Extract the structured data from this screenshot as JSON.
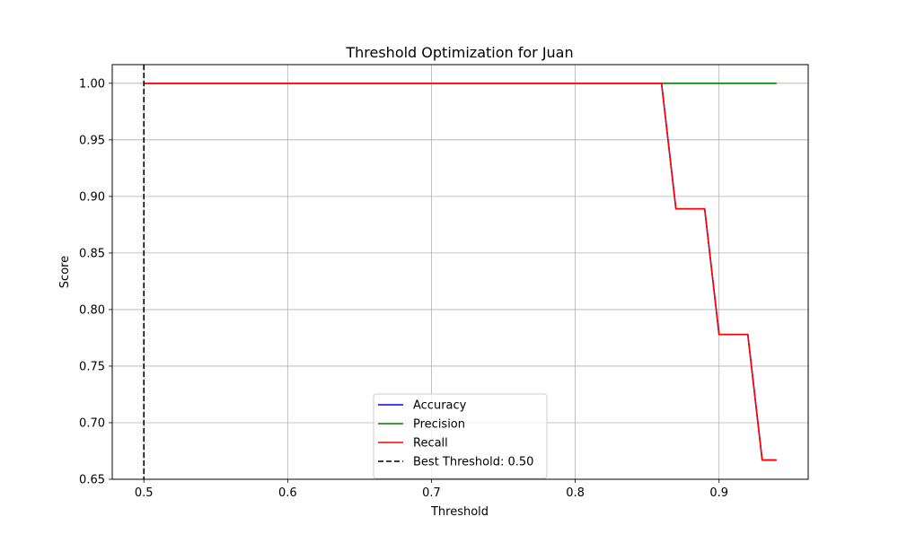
{
  "chart_data": {
    "type": "line",
    "title": "Threshold Optimization for Juan",
    "xlabel": "Threshold",
    "ylabel": "Score",
    "xlim": [
      0.478,
      0.962
    ],
    "ylim": [
      0.65,
      1.0165
    ],
    "xticks": [
      0.5,
      0.6,
      0.7,
      0.8,
      0.9
    ],
    "xtick_labels": [
      "0.5",
      "0.6",
      "0.7",
      "0.8",
      "0.9"
    ],
    "yticks": [
      0.65,
      0.7,
      0.75,
      0.8,
      0.85,
      0.9,
      0.95,
      1.0
    ],
    "ytick_labels": [
      "0.65",
      "0.70",
      "0.75",
      "0.80",
      "0.85",
      "0.90",
      "0.95",
      "1.00"
    ],
    "grid": true,
    "legend_position": "lower-center",
    "x": [
      0.5,
      0.51,
      0.52,
      0.53,
      0.54,
      0.55,
      0.56,
      0.57,
      0.58,
      0.59,
      0.6,
      0.61,
      0.62,
      0.63,
      0.64,
      0.65,
      0.66,
      0.67,
      0.68,
      0.69,
      0.7,
      0.71,
      0.72,
      0.73,
      0.74,
      0.75,
      0.76,
      0.77,
      0.78,
      0.79,
      0.8,
      0.81,
      0.82,
      0.83,
      0.84,
      0.85,
      0.86,
      0.87,
      0.88,
      0.89,
      0.9,
      0.91,
      0.92,
      0.93,
      0.94
    ],
    "series": [
      {
        "name": "Accuracy",
        "color": "#0000ff",
        "style": "solid",
        "values": [
          1,
          1,
          1,
          1,
          1,
          1,
          1,
          1,
          1,
          1,
          1,
          1,
          1,
          1,
          1,
          1,
          1,
          1,
          1,
          1,
          1,
          1,
          1,
          1,
          1,
          1,
          1,
          1,
          1,
          1,
          1,
          1,
          1,
          1,
          1,
          1,
          1,
          0.889,
          0.889,
          0.889,
          0.778,
          0.778,
          0.778,
          0.667,
          0.667
        ]
      },
      {
        "name": "Precision",
        "color": "#008000",
        "style": "solid",
        "values": [
          1,
          1,
          1,
          1,
          1,
          1,
          1,
          1,
          1,
          1,
          1,
          1,
          1,
          1,
          1,
          1,
          1,
          1,
          1,
          1,
          1,
          1,
          1,
          1,
          1,
          1,
          1,
          1,
          1,
          1,
          1,
          1,
          1,
          1,
          1,
          1,
          1,
          1,
          1,
          1,
          1,
          1,
          1,
          1,
          1
        ]
      },
      {
        "name": "Recall",
        "color": "#ff0000",
        "style": "solid",
        "values": [
          1,
          1,
          1,
          1,
          1,
          1,
          1,
          1,
          1,
          1,
          1,
          1,
          1,
          1,
          1,
          1,
          1,
          1,
          1,
          1,
          1,
          1,
          1,
          1,
          1,
          1,
          1,
          1,
          1,
          1,
          1,
          1,
          1,
          1,
          1,
          1,
          1,
          0.889,
          0.889,
          0.889,
          0.778,
          0.778,
          0.778,
          0.667,
          0.667
        ]
      }
    ],
    "vlines": [
      {
        "name": "Best Threshold: 0.50",
        "x": 0.5,
        "color": "#000000",
        "style": "dashed"
      }
    ],
    "legend": [
      "Accuracy",
      "Precision",
      "Recall",
      "Best Threshold: 0.50"
    ]
  }
}
